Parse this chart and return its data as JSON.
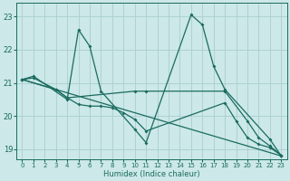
{
  "xlabel": "Humidex (Indice chaleur)",
  "ylabel": "",
  "xlim": [
    -0.5,
    23.5
  ],
  "ylim": [
    18.7,
    23.4
  ],
  "yticks": [
    19,
    20,
    21,
    22,
    23
  ],
  "xticks": [
    0,
    1,
    2,
    3,
    4,
    5,
    6,
    7,
    8,
    9,
    10,
    11,
    12,
    13,
    14,
    15,
    16,
    17,
    18,
    19,
    20,
    21,
    22,
    23
  ],
  "bg_color": "#cce8e8",
  "grid_color": "#aacece",
  "line_color": "#1a6b60",
  "line1": {
    "x": [
      0,
      1,
      4,
      5,
      6,
      7,
      10,
      11,
      15,
      16,
      17,
      18,
      22,
      23
    ],
    "y": [
      21.1,
      21.2,
      20.5,
      22.6,
      22.1,
      20.75,
      19.6,
      19.2,
      23.05,
      22.75,
      21.5,
      20.8,
      19.3,
      18.8
    ]
  },
  "line2": {
    "x": [
      0,
      1,
      3,
      4,
      10,
      11,
      18,
      20,
      21,
      22,
      23
    ],
    "y": [
      21.1,
      21.15,
      20.8,
      20.55,
      20.75,
      20.75,
      20.75,
      19.85,
      19.35,
      19.1,
      18.82
    ]
  },
  "line3": {
    "x": [
      0,
      3,
      4,
      5,
      6,
      7,
      8,
      9,
      10,
      11,
      18,
      19,
      20,
      21,
      22,
      23
    ],
    "y": [
      21.1,
      20.8,
      20.55,
      20.35,
      20.3,
      20.3,
      20.25,
      20.1,
      19.9,
      19.55,
      20.4,
      19.85,
      19.35,
      19.15,
      19.05,
      18.82
    ]
  },
  "line4_diag": {
    "x": [
      0,
      23
    ],
    "y": [
      21.1,
      18.8
    ]
  }
}
